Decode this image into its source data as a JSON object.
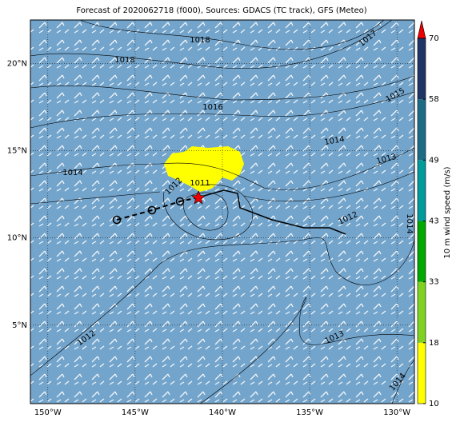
{
  "map": {
    "title": "Forecast of 2020062718 (f000), Sources: GDACS (TC track), GFS (Meteo)",
    "xlim": [
      -151,
      -129
    ],
    "ylim": [
      0.5,
      22.5
    ],
    "xticks": [
      {
        "value": -150,
        "label": "150°W"
      },
      {
        "value": -145,
        "label": "145°W"
      },
      {
        "value": -140,
        "label": "140°W"
      },
      {
        "value": -135,
        "label": "135°W"
      },
      {
        "value": -130,
        "label": "130°W"
      }
    ],
    "yticks": [
      {
        "value": 5,
        "label": "5°N"
      },
      {
        "value": 10,
        "label": "10°N"
      },
      {
        "value": 15,
        "label": "15°N"
      },
      {
        "value": 20,
        "label": "20°N"
      }
    ],
    "contour_labels": [
      "1018",
      "1017",
      "1018",
      "1015",
      "1016",
      "1014",
      "1013",
      "1014",
      "1012",
      "1011",
      "1012",
      "1014",
      "1012",
      "1013",
      "1014"
    ],
    "colorbar": {
      "label": "10 m wind speed (m/s)",
      "ticks": [
        10,
        18,
        33,
        43,
        49,
        58,
        70
      ],
      "colors": [
        "#ffff00",
        "#7fd320",
        "#00a800",
        "#009b9b",
        "#1e6b86",
        "#1f3566"
      ],
      "extend_color": "#ee0000"
    }
  }
}
